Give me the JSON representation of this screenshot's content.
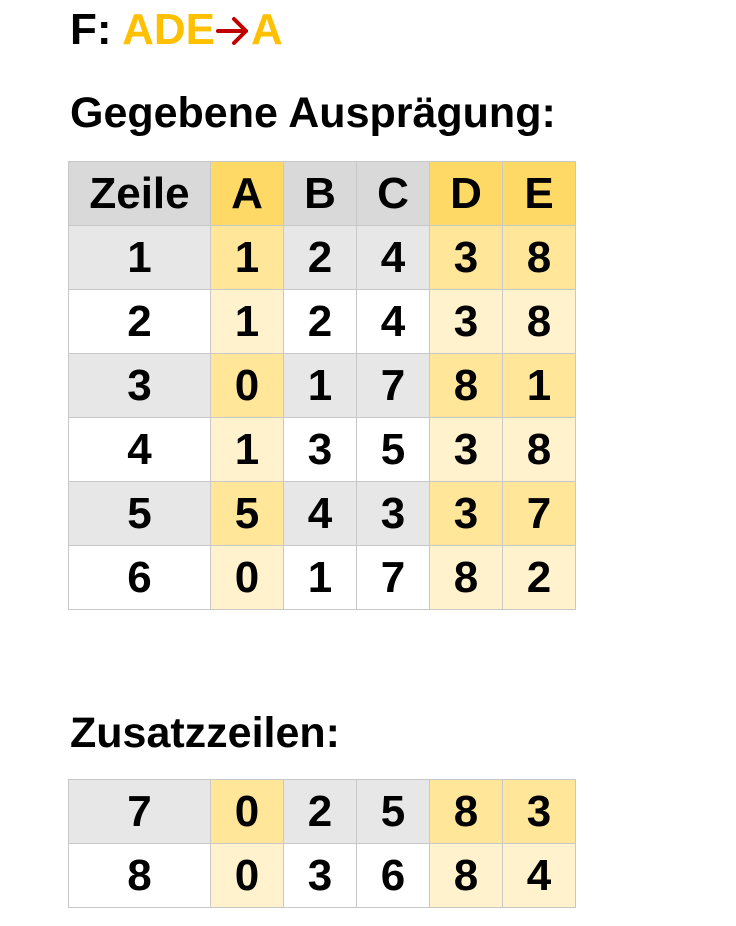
{
  "fd": {
    "prefix": "F: ",
    "lhs": "ADE",
    "rhs": "A",
    "arrow_color": "#c00000",
    "highlight_color": "#ffc000"
  },
  "given_heading": "Gegebene Ausprägung:",
  "extra_heading": "Zusatzzeilen:",
  "columns": [
    "Zeile",
    "A",
    "B",
    "C",
    "D",
    "E"
  ],
  "highlighted_columns": [
    "A",
    "D",
    "E"
  ],
  "given_rows": [
    [
      "1",
      "1",
      "2",
      "4",
      "3",
      "8"
    ],
    [
      "2",
      "1",
      "2",
      "4",
      "3",
      "8"
    ],
    [
      "3",
      "0",
      "1",
      "7",
      "8",
      "1"
    ],
    [
      "4",
      "1",
      "3",
      "5",
      "3",
      "8"
    ],
    [
      "5",
      "5",
      "4",
      "3",
      "3",
      "7"
    ],
    [
      "6",
      "0",
      "1",
      "7",
      "8",
      "2"
    ]
  ],
  "extra_rows": [
    [
      "7",
      "0",
      "2",
      "5",
      "8",
      "3"
    ],
    [
      "8",
      "0",
      "3",
      "6",
      "8",
      "4"
    ]
  ]
}
